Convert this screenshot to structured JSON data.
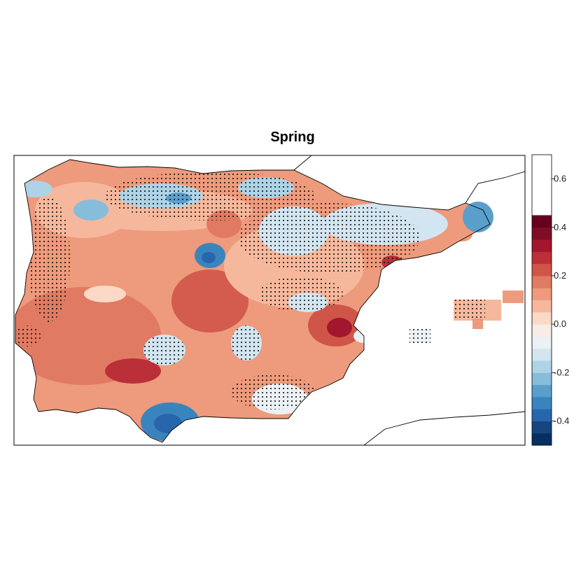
{
  "title": "Spring",
  "colorbar": {
    "range": [
      -0.5,
      0.7
    ],
    "step": 0.05,
    "ticks": [
      {
        "value": 0.6,
        "label": "0.6"
      },
      {
        "value": 0.4,
        "label": "0.4"
      },
      {
        "value": 0.2,
        "label": "0.2"
      },
      {
        "value": 0.0,
        "label": "0.0"
      },
      {
        "value": -0.2,
        "label": "-0.2"
      },
      {
        "value": -0.4,
        "label": "-0.4"
      }
    ],
    "colors": [
      "#053061",
      "#15467f",
      "#2766ad",
      "#3a84bd",
      "#5a9fcb",
      "#88bcdb",
      "#afd3e6",
      "#d2e5f0",
      "#ebf1f5",
      "#f8ece6",
      "#fcd9c6",
      "#f6b89c",
      "#ee9a7c",
      "#e17a62",
      "#cf5549",
      "#bb3038",
      "#a2172d",
      "#7f0d26",
      "#67001f"
    ]
  },
  "map": {
    "colors": {
      "coast": "#000000",
      "stipple": "#000000",
      "frame": "#000000"
    },
    "stippling": "grid cells with non-significant values are marked with black dots"
  }
}
